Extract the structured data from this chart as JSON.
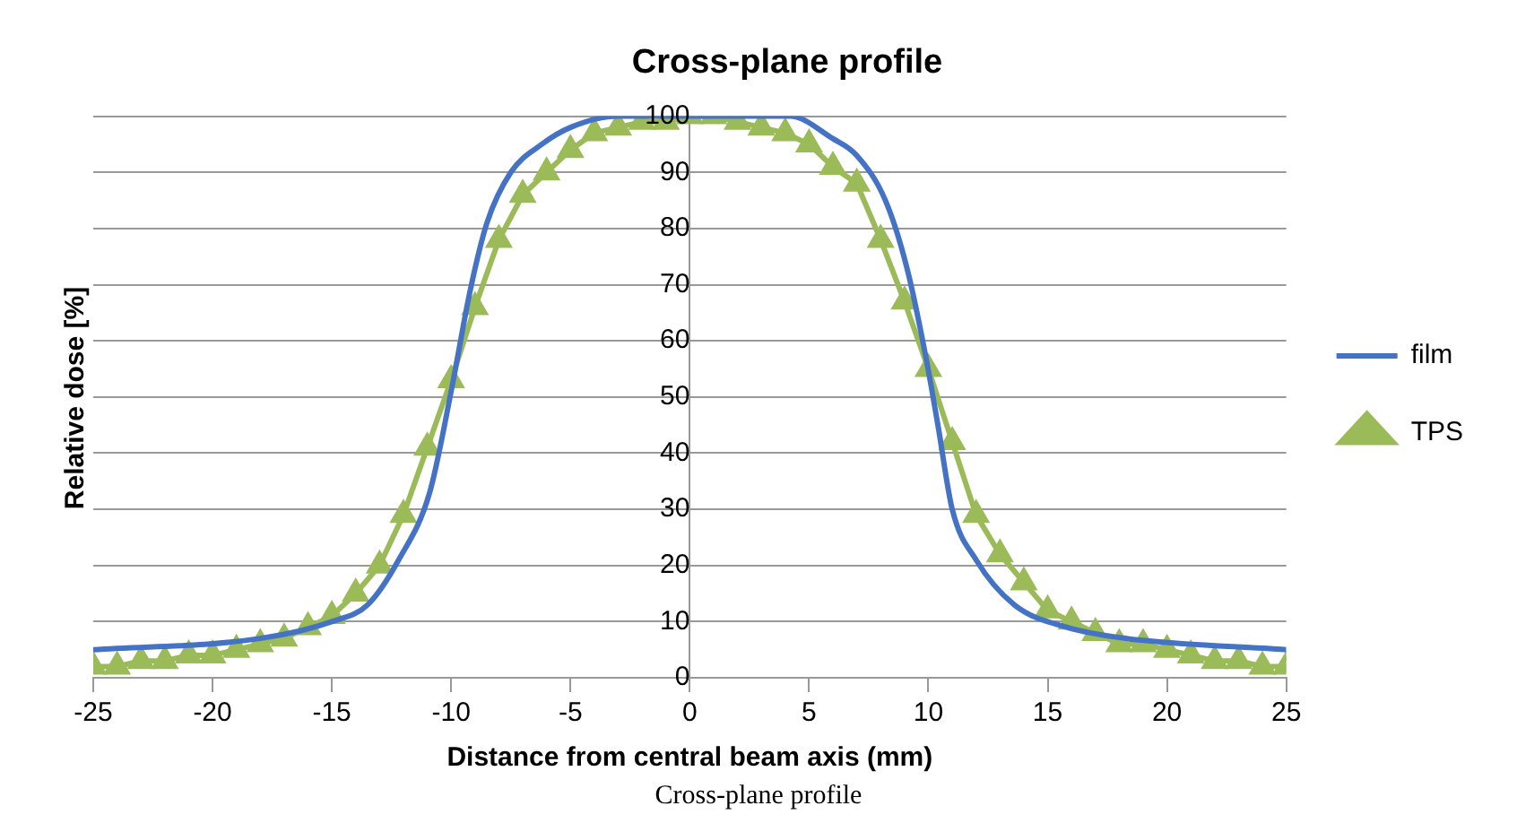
{
  "chart_data": {
    "type": "line",
    "title": "Cross-plane profile",
    "xlabel": "Distance from central beam axis (mm)",
    "ylabel": "Relative dose [%]",
    "xlim": [
      -25,
      25
    ],
    "xticks": [
      -25,
      -20,
      -15,
      -10,
      -5,
      0,
      5,
      10,
      15,
      20,
      25
    ],
    "ylim": [
      0,
      100
    ],
    "yticks": [
      0,
      10,
      20,
      30,
      40,
      50,
      60,
      70,
      80,
      90,
      100
    ],
    "grid": "y",
    "legend": "right",
    "annotations": [
      "Cross-plane profile"
    ],
    "series": [
      {
        "name": "film",
        "color": "#4472c4",
        "marker": "none",
        "x": [
          -25,
          -18,
          -15,
          -13.5,
          -12.2,
          -10.9,
          -10,
          -9.2,
          -8.5,
          -7.5,
          -6.2,
          -5,
          -3,
          0,
          3,
          4.2,
          6,
          7,
          8.2,
          9.1,
          9.9,
          10.4,
          11,
          12,
          13.6,
          15.8,
          18.3,
          25
        ],
        "values": [
          5,
          7,
          10,
          13,
          21,
          33,
          51,
          69,
          81,
          90,
          95,
          98,
          100,
          100,
          100,
          100,
          96,
          93,
          85,
          73,
          57,
          45,
          30,
          21,
          13,
          9,
          7,
          5
        ]
      },
      {
        "name": "TPS",
        "color": "#9bbb59",
        "marker": "triangle",
        "x": [
          -25,
          -24,
          -23,
          -22,
          -21,
          -20,
          -19,
          -18,
          -17,
          -16,
          -15,
          -14,
          -13,
          -12,
          -11,
          -10,
          -9,
          -8,
          -7,
          -6,
          -5,
          -4,
          -3,
          -2,
          -1,
          0,
          1,
          2,
          3,
          4,
          5,
          6,
          7,
          8,
          9,
          10,
          11,
          12,
          13,
          14,
          15,
          16,
          17,
          18,
          19,
          20,
          21,
          22,
          23,
          24,
          25
        ],
        "values": [
          2,
          2,
          3,
          3,
          4,
          4,
          5,
          6,
          7,
          9,
          11,
          15,
          20,
          29,
          41,
          53,
          66,
          78,
          86,
          90,
          94,
          97,
          98,
          99,
          99,
          100,
          100,
          99,
          98,
          97,
          95,
          91,
          88,
          78,
          67,
          55,
          42,
          29,
          22,
          17,
          12,
          10,
          8,
          6,
          6,
          5,
          4,
          3,
          3,
          2,
          2
        ]
      }
    ]
  }
}
